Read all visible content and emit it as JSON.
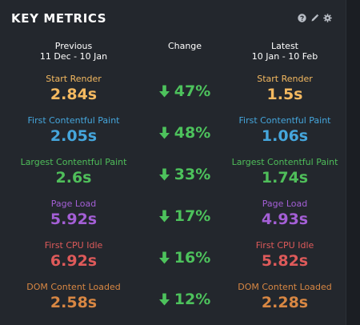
{
  "title": "KEY METRICS",
  "tools": [
    {
      "icon": "help-icon",
      "glyph": "?"
    },
    {
      "icon": "pencil-icon",
      "glyph": "✎"
    },
    {
      "icon": "gear-icon",
      "glyph": "⚙"
    }
  ],
  "columns": {
    "previous": {
      "label": "Previous",
      "range": "11 Dec - 10 Jan"
    },
    "change": {
      "label": "Change"
    },
    "latest": {
      "label": "Latest",
      "range": "10 Jan - 10 Feb"
    }
  },
  "colors": {
    "start_render": "#f4b960",
    "first_contentful_paint": "#45a6dc",
    "largest_contentful_paint": "#4fbe5a",
    "page_load": "#a45fd6",
    "first_cpu_idle": "#de5a5a",
    "dom_content_loaded": "#d88743",
    "change": "#4dc25c"
  },
  "metrics": [
    {
      "key": "start_render",
      "label": "Start Render",
      "previous": "2.84s",
      "change": "47%",
      "latest": "1.5s",
      "direction": "down"
    },
    {
      "key": "first_contentful_paint",
      "label": "First Contentful Paint",
      "previous": "2.05s",
      "change": "48%",
      "latest": "1.06s",
      "direction": "down"
    },
    {
      "key": "largest_contentful_paint",
      "label": "Largest Contentful Paint",
      "previous": "2.6s",
      "change": "33%",
      "latest": "1.74s",
      "direction": "down"
    },
    {
      "key": "page_load",
      "label": "Page Load",
      "previous": "5.92s",
      "change": "17%",
      "latest": "4.93s",
      "direction": "down"
    },
    {
      "key": "first_cpu_idle",
      "label": "First CPU Idle",
      "previous": "6.92s",
      "change": "16%",
      "latest": "5.82s",
      "direction": "down"
    },
    {
      "key": "dom_content_loaded",
      "label": "DOM Content Loaded",
      "previous": "2.58s",
      "change": "12%",
      "latest": "2.28s",
      "direction": "down"
    }
  ]
}
